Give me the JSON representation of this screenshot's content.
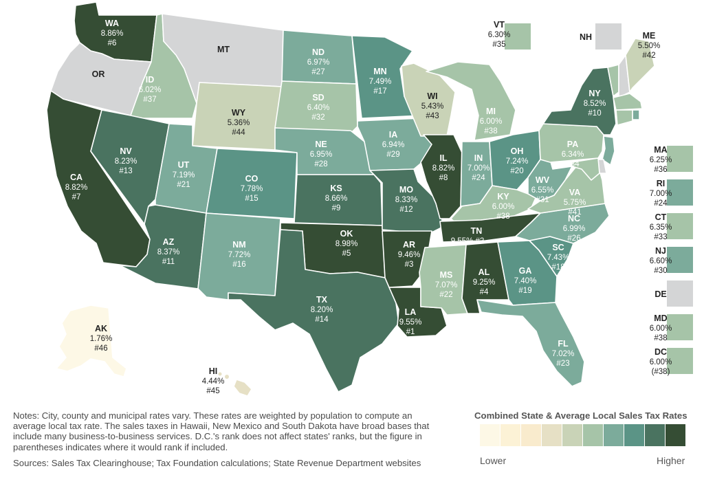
{
  "title": "Combined State & Average Local Sales Tax Rates",
  "legend": {
    "low_label": "Lower",
    "high_label": "Higher",
    "colors": [
      "#fdf8e6",
      "#fcf2d6",
      "#f9ebcd",
      "#e6e0c5",
      "#c9d3b7",
      "#a6c4a8",
      "#7cab9b",
      "#5b9486",
      "#4a7360",
      "#354d34"
    ]
  },
  "notes": "Notes: City, county and municipal rates vary. These rates are weighted by population to compute an average local tax rate. The sales taxes in Hawaii, New Mexico and South Dakota have broad bases that include many business-to-business services. D.C.'s rank does not affect states' ranks, but the figure in parentheses indicates where it would rank if included.",
  "sources": "Sources: Sales Tax Clearinghouse; Tax Foundation calculations; State Revenue Department websites",
  "no_tax_color": "#d4d5d6",
  "states": {
    "WA": {
      "abbr": "WA",
      "rate": "8.86%",
      "rank": "#6"
    },
    "OR": {
      "abbr": "OR",
      "rate": "",
      "rank": ""
    },
    "CA": {
      "abbr": "CA",
      "rate": "8.82%",
      "rank": "#7"
    },
    "ID": {
      "abbr": "ID",
      "rate": "6.02%",
      "rank": "#37"
    },
    "NV": {
      "abbr": "NV",
      "rate": "8.23%",
      "rank": "#13"
    },
    "MT": {
      "abbr": "MT",
      "rate": "",
      "rank": ""
    },
    "WY": {
      "abbr": "WY",
      "rate": "5.36%",
      "rank": "#44"
    },
    "UT": {
      "abbr": "UT",
      "rate": "7.19%",
      "rank": "#21"
    },
    "AZ": {
      "abbr": "AZ",
      "rate": "8.37%",
      "rank": "#11"
    },
    "CO": {
      "abbr": "CO",
      "rate": "7.78%",
      "rank": "#15"
    },
    "NM": {
      "abbr": "NM",
      "rate": "7.72%",
      "rank": "#16"
    },
    "ND": {
      "abbr": "ND",
      "rate": "6.97%",
      "rank": "#27"
    },
    "SD": {
      "abbr": "SD",
      "rate": "6.40%",
      "rank": "#32"
    },
    "NE": {
      "abbr": "NE",
      "rate": "6.95%",
      "rank": "#28"
    },
    "KS": {
      "abbr": "KS",
      "rate": "8.66%",
      "rank": "#9"
    },
    "OK": {
      "abbr": "OK",
      "rate": "8.98%",
      "rank": "#5"
    },
    "TX": {
      "abbr": "TX",
      "rate": "8.20%",
      "rank": "#14"
    },
    "MN": {
      "abbr": "MN",
      "rate": "7.49%",
      "rank": "#17"
    },
    "IA": {
      "abbr": "IA",
      "rate": "6.94%",
      "rank": "#29"
    },
    "MO": {
      "abbr": "MO",
      "rate": "8.33%",
      "rank": "#12"
    },
    "AR": {
      "abbr": "AR",
      "rate": "9.46%",
      "rank": "#3"
    },
    "LA": {
      "abbr": "LA",
      "rate": "9.55%",
      "rank": "#1"
    },
    "WI": {
      "abbr": "WI",
      "rate": "5.43%",
      "rank": "#43"
    },
    "IL": {
      "abbr": "IL",
      "rate": "8.82%",
      "rank": "#8"
    },
    "MI": {
      "abbr": "MI",
      "rate": "6.00%",
      "rank": "#38"
    },
    "IN": {
      "abbr": "IN",
      "rate": "7.00%",
      "rank": "#24"
    },
    "OH": {
      "abbr": "OH",
      "rate": "7.24%",
      "rank": "#20"
    },
    "KY": {
      "abbr": "KY",
      "rate": "6.00%",
      "rank": "#38"
    },
    "TN": {
      "abbr": "TN",
      "rate": "9.55%",
      "rank": "#2"
    },
    "MS": {
      "abbr": "MS",
      "rate": "7.07%",
      "rank": "#22"
    },
    "AL": {
      "abbr": "AL",
      "rate": "9.25%",
      "rank": "#4"
    },
    "GA": {
      "abbr": "GA",
      "rate": "7.40%",
      "rank": "#19"
    },
    "FL": {
      "abbr": "FL",
      "rate": "7.02%",
      "rank": "#23"
    },
    "SC": {
      "abbr": "SC",
      "rate": "7.43%",
      "rank": "#18"
    },
    "NC": {
      "abbr": "NC",
      "rate": "6.99%",
      "rank": "#26"
    },
    "VA": {
      "abbr": "VA",
      "rate": "5.75%",
      "rank": "#41"
    },
    "WV": {
      "abbr": "WV",
      "rate": "6.55%",
      "rank": "#31"
    },
    "PA": {
      "abbr": "PA",
      "rate": "6.34%",
      "rank": "#34"
    },
    "NY": {
      "abbr": "NY",
      "rate": "8.52%",
      "rank": "#10"
    },
    "ME": {
      "abbr": "ME",
      "rate": "5.50%",
      "rank": "#42"
    },
    "VT": {
      "abbr": "VT",
      "rate": "6.30%",
      "rank": "#35"
    },
    "NH": {
      "abbr": "NH",
      "rate": "",
      "rank": ""
    },
    "MA": {
      "abbr": "MA",
      "rate": "6.25%",
      "rank": "#36"
    },
    "RI": {
      "abbr": "RI",
      "rate": "7.00%",
      "rank": "#24"
    },
    "CT": {
      "abbr": "CT",
      "rate": "6.35%",
      "rank": "#33"
    },
    "NJ": {
      "abbr": "NJ",
      "rate": "6.60%",
      "rank": "#30"
    },
    "DE": {
      "abbr": "DE",
      "rate": "",
      "rank": ""
    },
    "MD": {
      "abbr": "MD",
      "rate": "6.00%",
      "rank": "#38"
    },
    "DC": {
      "abbr": "DC",
      "rate": "6.00%",
      "rank": "(#38)"
    },
    "AK": {
      "abbr": "AK",
      "rate": "1.76%",
      "rank": "#46"
    },
    "HI": {
      "abbr": "HI",
      "rate": "4.44%",
      "rank": "#45"
    }
  }
}
